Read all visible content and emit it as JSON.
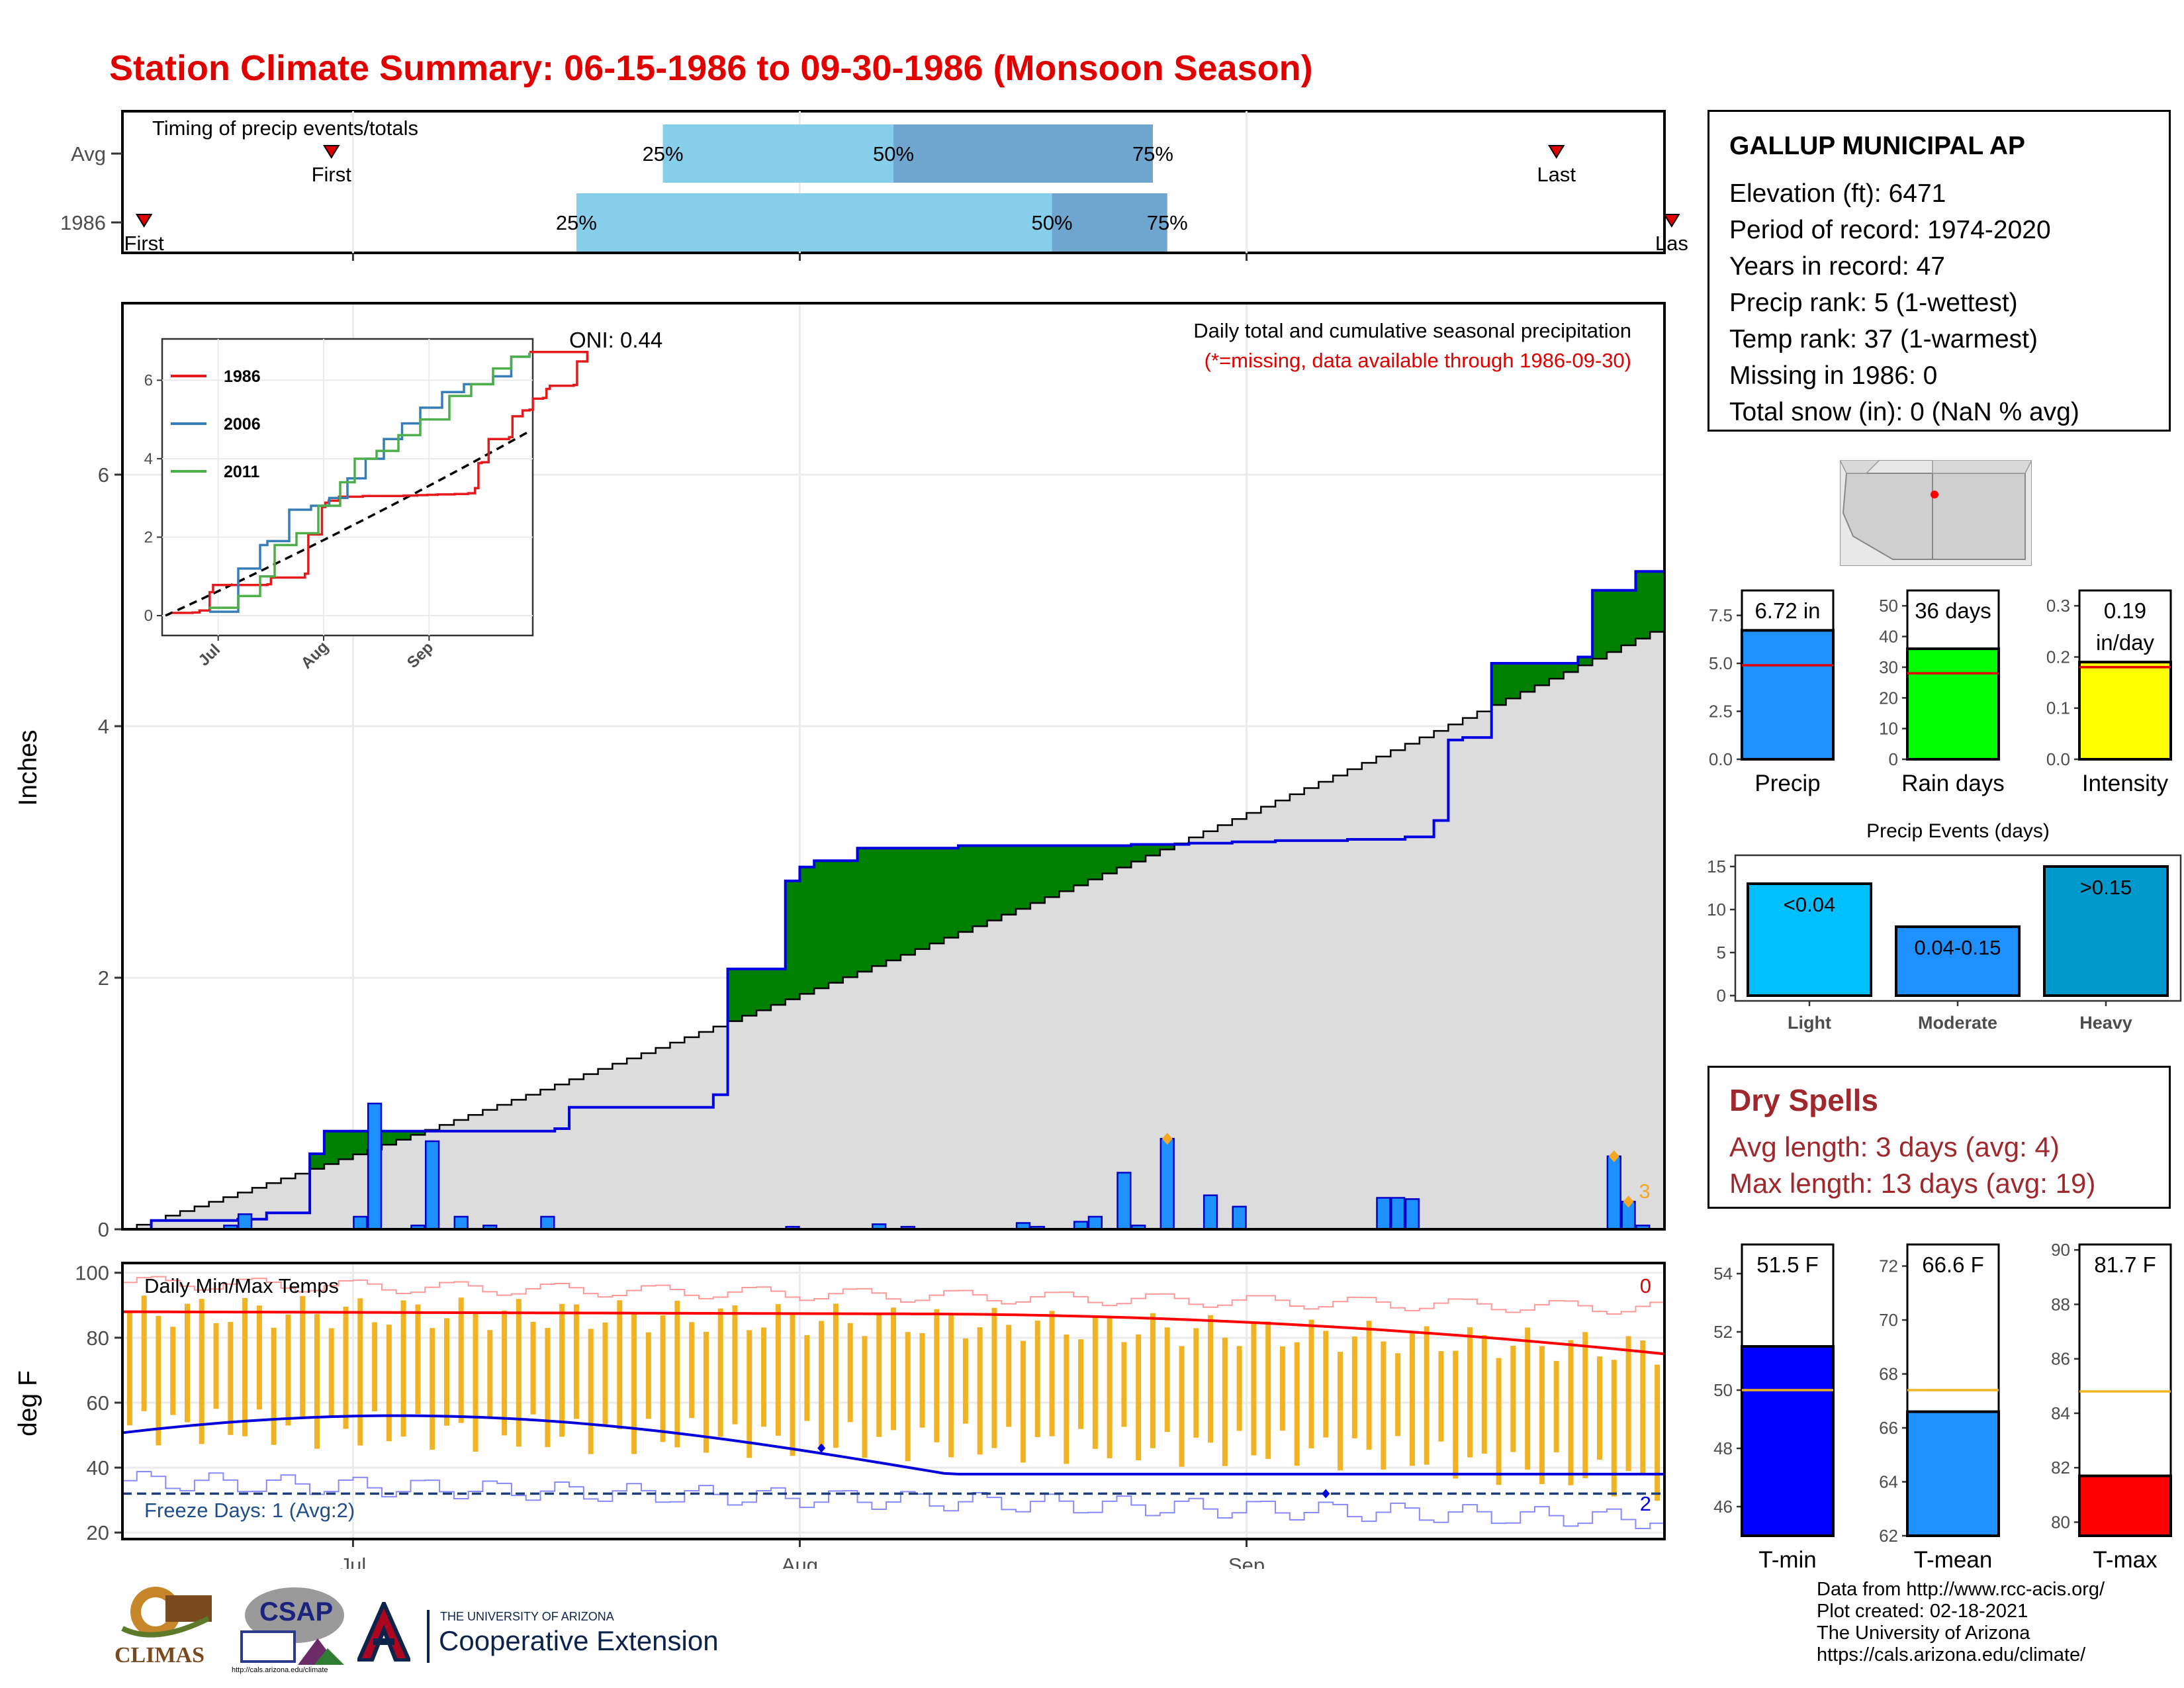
{
  "title": "Station Climate Summary: 06-15-1986 to 09-30-1986 (Monsoon Season)",
  "colors": {
    "title": "#e00000",
    "cumulative_fill": "#008000",
    "cumulative_line": "#0000e0",
    "avg_fill": "#dcdcdc",
    "daily_bar": "#1e90ff",
    "bar_light": "#00bfff",
    "bar_dark": "#0099cc",
    "temp_bar": "#f0b323",
    "tmax_line": "#ff0000",
    "tmin_line": "#0000dd",
    "freeze_line": "#1f3f7a",
    "quartile_light": "#87ceeb",
    "quartile_dark": "#6fa6cf",
    "dry_text": "#a0282d"
  },
  "timing": {
    "label": "Timing of precip events/totals",
    "rows": [
      "Avg",
      "1986"
    ],
    "first_label": "First",
    "last_label": "Last",
    "last_label_clipped": "Las",
    "avg": {
      "first": "2021-06-29",
      "last": "2021-09-22",
      "q25": "2021-07-22",
      "q50": "2021-08-07",
      "q75": "2021-08-25"
    },
    "y1986": {
      "first": "2021-06-16",
      "last": "2021-09-30",
      "q25": "2021-07-16",
      "q50": "2021-08-18",
      "q75": "2021-08-26"
    },
    "pct": [
      "25%",
      "50%",
      "75%"
    ]
  },
  "station": {
    "name": "GALLUP MUNICIPAL AP",
    "lines": [
      "Elevation (ft): 6471",
      "Period of record: 1974-2020",
      "Years in record: 47",
      "Precip rank: 5 (1-wettest)",
      "Temp rank: 37 (1-warmest)",
      "Missing in 1986: 0",
      "Total snow (in): 0 (NaN % avg)"
    ]
  },
  "precip_panel": {
    "ylabel": "Inches",
    "heading": "Daily total and cumulative seasonal precipitation",
    "missing_note": "(*=missing, data available through 1986-09-30)",
    "oni": "ONI: 0.44",
    "extreme_count": "3",
    "yticks": [
      "0",
      "2",
      "4",
      "6"
    ],
    "xticks": [
      "Jul",
      "Aug",
      "Sep"
    ]
  },
  "inset": {
    "yticks": [
      "0",
      "2",
      "4",
      "6"
    ],
    "xticks": [
      "Jul",
      "Aug",
      "Sep"
    ],
    "legend": [
      "1986",
      "2006",
      "2011"
    ]
  },
  "temp_panel": {
    "ylabel": "deg F",
    "label": "Daily Min/Max Temps",
    "freeze_label": "Freeze Days: 1 (Avg:2)",
    "hot_count": "0",
    "freeze_count": "2",
    "yticks": [
      "20",
      "40",
      "60",
      "80",
      "100"
    ],
    "xticks": [
      "Jul",
      "Aug",
      "Sep"
    ]
  },
  "summary_bars": {
    "precip": {
      "label": "Precip",
      "value_text": "6.72 in",
      "yticks": [
        "0.0",
        "2.5",
        "5.0",
        "7.5"
      ]
    },
    "raindays": {
      "label": "Rain days",
      "value_text": "36 days",
      "yticks": [
        "0",
        "10",
        "20",
        "30",
        "40",
        "50"
      ]
    },
    "intensity": {
      "label": "Intensity",
      "value_text": "0.19",
      "value_unit": "in/day",
      "yticks": [
        "0.0",
        "0.1",
        "0.2",
        "0.3"
      ]
    }
  },
  "events": {
    "title": "Precip Events (days)",
    "yticks": [
      "0",
      "5",
      "10",
      "15"
    ],
    "categories": [
      "Light",
      "Moderate",
      "Heavy"
    ],
    "labels": [
      "<0.04",
      "0.04-0.15",
      ">0.15"
    ]
  },
  "dry_spells": {
    "title": "Dry Spells",
    "avg_line": "Avg length: 3 days (avg: 4)",
    "max_line": "Max length: 13 days (avg: 19)"
  },
  "temp_bars": {
    "tmin": {
      "label": "T-min",
      "value_text": "51.5 F",
      "yticks": [
        "46",
        "48",
        "50",
        "52",
        "54"
      ]
    },
    "tmean": {
      "label": "T-mean",
      "value_text": "66.6 F",
      "yticks": [
        "62",
        "64",
        "66",
        "68",
        "70",
        "72"
      ]
    },
    "tmax": {
      "label": "T-max",
      "value_text": "81.7 F",
      "yticks": [
        "80",
        "82",
        "84",
        "86",
        "88",
        "90"
      ]
    }
  },
  "credits": [
    "Data from http://www.rcc-acis.org/",
    "Plot created: 02-18-2021",
    "The University of Arizona",
    "https://cals.arizona.edu/climate/"
  ],
  "logos": {
    "climas": "CLIMAS",
    "csap": "CSAP",
    "csap_url": "http://cals.arizona.edu/climate",
    "ua_small": "THE UNIVERSITY OF ARIZONA",
    "ua_big": "Cooperative Extension"
  },
  "chart_data": [
    {
      "type": "area",
      "name": "Daily total and cumulative seasonal precipitation",
      "x_range": [
        "1986-06-15",
        "1986-09-30"
      ],
      "ylim": [
        0,
        7.3
      ],
      "cumulative_1986_steps": [
        [
          0,
          0
        ],
        [
          2,
          0.07
        ],
        [
          8,
          0.08
        ],
        [
          10,
          0.13
        ],
        [
          13,
          0.6
        ],
        [
          14,
          0.78
        ],
        [
          26,
          0.78
        ],
        [
          30,
          0.8
        ],
        [
          31,
          0.97
        ],
        [
          40,
          0.97
        ],
        [
          41,
          1.07
        ],
        [
          42,
          2.07
        ],
        [
          45,
          2.07
        ],
        [
          46,
          2.77
        ],
        [
          47,
          2.88
        ],
        [
          48,
          2.93
        ],
        [
          50,
          2.93
        ],
        [
          51,
          3.03
        ],
        [
          58,
          3.05
        ],
        [
          68,
          3.05
        ],
        [
          70,
          3.06
        ],
        [
          74,
          3.07
        ],
        [
          75,
          3.07
        ],
        [
          77,
          3.08
        ],
        [
          80,
          3.09
        ],
        [
          85,
          3.1
        ],
        [
          89,
          3.12
        ],
        [
          91,
          3.25
        ],
        [
          92,
          3.89
        ],
        [
          93,
          3.91
        ],
        [
          95,
          4.5
        ],
        [
          100,
          4.5
        ],
        [
          101,
          4.55
        ],
        [
          102,
          5.08
        ],
        [
          105,
          5.23
        ],
        [
          106,
          5.23
        ],
        [
          107,
          5.25
        ],
        [
          108,
          5.53
        ],
        [
          110,
          5.53
        ],
        [
          111,
          5.55
        ],
        [
          112,
          5.78
        ],
        [
          113,
          5.86
        ],
        [
          114,
          5.86
        ],
        [
          115,
          5.86
        ],
        [
          116,
          5.86
        ],
        [
          119,
          5.86
        ],
        [
          120,
          5.88
        ],
        [
          121,
          6.48
        ],
        [
          122,
          6.48
        ],
        [
          124,
          6.72
        ]
      ],
      "average_cumulative_end": 4.75,
      "daily_bars": [
        [
          2,
          0.05
        ],
        [
          3,
          0.05
        ],
        [
          8,
          0.02
        ],
        [
          12,
          0.1
        ],
        [
          13,
          0.37
        ],
        [
          14,
          0.4
        ],
        [
          33,
          0.03
        ],
        [
          34,
          0.12
        ],
        [
          42,
          0.1
        ],
        [
          43,
          1.0
        ],
        [
          46,
          0.03
        ],
        [
          47,
          0.7
        ],
        [
          49,
          0.1
        ],
        [
          51,
          0.03
        ],
        [
          55,
          0.1
        ],
        [
          72,
          0.02
        ],
        [
          78,
          0.04
        ],
        [
          80,
          0.02
        ],
        [
          88,
          0.05
        ],
        [
          89,
          0.02
        ],
        [
          92,
          0.06
        ],
        [
          93,
          0.1
        ],
        [
          95,
          0.45
        ],
        [
          96,
          0.03
        ],
        [
          98,
          0.72
        ],
        [
          101,
          0.27
        ],
        [
          103,
          0.18
        ],
        [
          113,
          0.25
        ],
        [
          114,
          0.25
        ],
        [
          115,
          0.24
        ],
        [
          129,
          0.58
        ],
        [
          130,
          0.22
        ],
        [
          131,
          0.03
        ],
        [
          133,
          0.02
        ]
      ],
      "extreme_markers_days": [
        98,
        129,
        130
      ]
    },
    {
      "type": "line",
      "name": "inset",
      "series": [
        {
          "name": "1986",
          "end_value": 6.72
        },
        {
          "name": "2006",
          "end_value": 6.7
        },
        {
          "name": "2011",
          "end_value": 6.7
        }
      ],
      "average_end": 4.7,
      "ylim": [
        0,
        6.8
      ]
    },
    {
      "type": "bar",
      "name": "Daily Min/Max Temps",
      "ylim": [
        18,
        103
      ],
      "avg_tmax_range": [
        75,
        88
      ],
      "avg_tmin_range": [
        38,
        56
      ],
      "freeze_threshold": 32
    },
    {
      "type": "bar",
      "categories": [
        "Precip",
        "Rain days",
        "Intensity"
      ],
      "values": [
        6.72,
        36,
        0.19
      ],
      "averages": [
        4.9,
        28,
        0.18
      ],
      "ylims": [
        [
          0,
          8.8
        ],
        [
          0,
          55
        ],
        [
          0,
          0.33
        ]
      ]
    },
    {
      "type": "bar",
      "title": "Precip Events (days)",
      "categories": [
        "Light",
        "Moderate",
        "Heavy"
      ],
      "values": [
        13,
        8,
        15
      ],
      "ylim": [
        0,
        16
      ]
    },
    {
      "type": "bar",
      "categories": [
        "T-min",
        "T-mean",
        "T-max"
      ],
      "values": [
        51.5,
        66.6,
        81.7
      ],
      "averages": [
        50.0,
        67.4,
        84.8
      ],
      "ylims": [
        [
          45,
          55
        ],
        [
          62,
          72.8
        ],
        [
          79.5,
          90.2
        ]
      ]
    }
  ]
}
